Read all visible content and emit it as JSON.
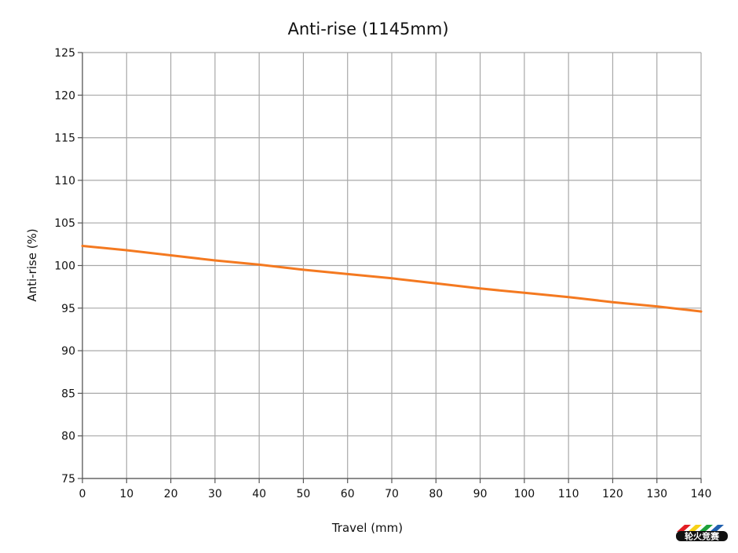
{
  "chart_data": {
    "type": "line",
    "title": "Anti-rise (1145mm)",
    "xlabel": "Travel (mm)",
    "ylabel": "Anti-rise (%)",
    "xlim": [
      0,
      140
    ],
    "ylim": [
      75,
      125
    ],
    "xticks": [
      0,
      10,
      20,
      30,
      40,
      50,
      60,
      70,
      80,
      90,
      100,
      110,
      120,
      130,
      140
    ],
    "yticks": [
      75,
      80,
      85,
      90,
      95,
      100,
      105,
      110,
      115,
      120,
      125
    ],
    "grid": true,
    "series": [
      {
        "color": "#f47920",
        "x": [
          0,
          10,
          20,
          30,
          40,
          50,
          60,
          70,
          80,
          90,
          100,
          110,
          120,
          130,
          140
        ],
        "y": [
          102.3,
          101.8,
          101.2,
          100.6,
          100.1,
          99.5,
          99.0,
          98.5,
          97.9,
          97.3,
          96.8,
          96.3,
          95.7,
          95.2,
          94.6
        ]
      }
    ]
  },
  "watermark": {
    "text": "轮火竞赛",
    "colors": [
      "#e31e24",
      "#f7d117",
      "#1ea13a",
      "#1f5fae"
    ]
  }
}
